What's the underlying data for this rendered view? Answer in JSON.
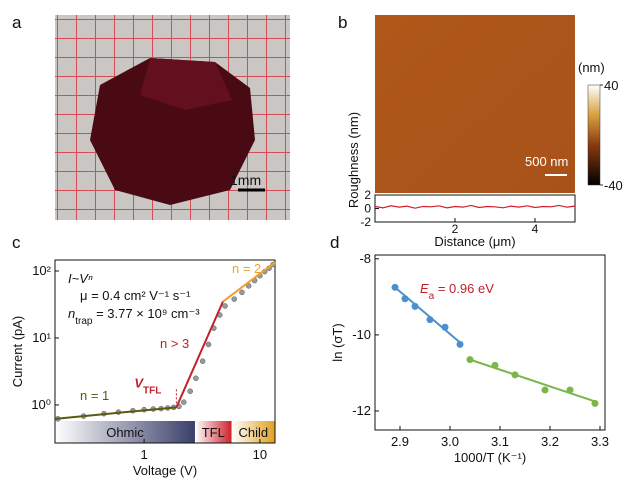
{
  "figure": {
    "panel_labels": [
      "a",
      "b",
      "c",
      "d"
    ],
    "a": {
      "scale_bar": "1mm"
    },
    "b": {
      "scale_bar": "500 nm",
      "colorbar": {
        "unit": "(nm)",
        "ticks": [
          40,
          -40
        ],
        "lim": [
          -40,
          40
        ]
      }
    }
  },
  "chart_data": [
    {
      "type": "line",
      "xlabel": "Distance (μm)",
      "ylabel": "Roughness (nm)",
      "xlim": [
        0,
        5
      ],
      "ylim": [
        -2,
        2
      ],
      "xticks": [
        2,
        4
      ],
      "yticks": [
        2,
        0,
        -2
      ],
      "series": [
        {
          "color": "#d0202a",
          "x": [
            0,
            0.2,
            0.4,
            0.6,
            0.8,
            1.0,
            1.2,
            1.4,
            1.6,
            1.8,
            2.0,
            2.2,
            2.4,
            2.6,
            2.8,
            3.0,
            3.2,
            3.4,
            3.6,
            3.8,
            4.0,
            4.2,
            4.4,
            4.6,
            4.8,
            5.0
          ],
          "values": [
            0.3,
            0.1,
            0.4,
            0.2,
            0.35,
            0.05,
            0.3,
            0.25,
            0.4,
            0.1,
            0.3,
            0.2,
            0.45,
            0.15,
            0.3,
            0.25,
            0.1,
            0.35,
            0.2,
            0.4,
            0.15,
            0.3,
            0.25,
            0.45,
            0.2,
            0.35
          ]
        }
      ]
    },
    {
      "type": "line",
      "log_scale": [
        "x",
        "y"
      ],
      "xlabel": "Voltage (V)",
      "ylabel": "Current (pA)",
      "xlim": [
        0.17,
        13.5
      ],
      "ylim": [
        0.27,
        146
      ],
      "xticks": [
        1,
        10
      ],
      "yticks": [
        {
          "value": 1,
          "label": "10⁰"
        },
        {
          "value": 10,
          "label": "10¹"
        },
        {
          "value": 100,
          "label": "10²"
        }
      ],
      "annotations": {
        "law": "I~Vⁿ",
        "mobility": "μ = 0.4 cm² V⁻¹ s⁻¹",
        "trap": [
          "n",
          "trap",
          " = 3.77 × 10⁹ cm⁻³"
        ],
        "v_tfl": [
          "V",
          "TFL"
        ]
      },
      "points": {
        "color": "#9a9a9a",
        "x": [
          0.18,
          0.3,
          0.45,
          0.6,
          0.8,
          1.0,
          1.2,
          1.4,
          1.6,
          1.8,
          2.0,
          2.2,
          2.5,
          2.8,
          3.2,
          3.6,
          4.0,
          4.5,
          5.0,
          6,
          7,
          8,
          9,
          10,
          11,
          12,
          13
        ],
        "values": [
          0.62,
          0.68,
          0.74,
          0.78,
          0.82,
          0.85,
          0.87,
          0.88,
          0.9,
          0.92,
          0.95,
          1.1,
          1.6,
          2.5,
          4.5,
          8,
          14,
          22,
          30,
          38,
          48,
          60,
          72,
          85,
          98,
          110,
          125
        ]
      },
      "series": [
        {
          "name": "n = 1",
          "color": "#5a5a10",
          "x": [
            0.17,
            1.9
          ],
          "values": [
            0.62,
            0.92
          ]
        },
        {
          "name": "n > 3",
          "color": "#c0202a",
          "x": [
            1.9,
            4.8
          ],
          "values": [
            0.92,
            35
          ]
        },
        {
          "name": "n = 2",
          "color": "#f0a030",
          "x": [
            4.8,
            13.5
          ],
          "values": [
            35,
            135
          ]
        }
      ],
      "regions": [
        {
          "name": "Ohmic",
          "color": "#3a3f6a",
          "x": [
            0.17,
            2.75
          ]
        },
        {
          "name": "TFL",
          "color": "#d0202a",
          "x": [
            2.75,
            5.7
          ]
        },
        {
          "name": "Child",
          "color": "#e0a020",
          "x": [
            5.7,
            13.5
          ]
        }
      ]
    },
    {
      "type": "scatter",
      "xlabel": "1000/T (K⁻¹)",
      "ylabel": "ln (σT)",
      "xlim": [
        2.85,
        3.31
      ],
      "ylim": [
        -12.5,
        -7.9
      ],
      "xticks": [
        2.9,
        {
          "value": 3,
          "label": "3.0"
        },
        3.1,
        3.2,
        3.3
      ],
      "yticks": [
        -12,
        -10,
        -8
      ],
      "annotation": {
        "parts": [
          "E",
          "a",
          " = 0.96 eV"
        ],
        "color": "#c0202a"
      },
      "series": [
        {
          "color": "#4a90d0",
          "x": [
            2.89,
            2.91,
            2.93,
            2.96,
            2.99,
            3.02
          ],
          "values": [
            -8.75,
            -9.05,
            -9.25,
            -9.6,
            -9.8,
            -10.25
          ],
          "fit": {
            "x": [
              2.89,
              3.02
            ],
            "values": [
              -8.75,
              -10.2
            ]
          }
        },
        {
          "color": "#7ab648",
          "x": [
            3.04,
            3.09,
            3.13,
            3.19,
            3.24,
            3.29
          ],
          "values": [
            -10.65,
            -10.8,
            -11.05,
            -11.45,
            -11.45,
            -11.8
          ],
          "fit": {
            "x": [
              3.04,
              3.29
            ],
            "values": [
              -10.65,
              -11.75
            ]
          }
        }
      ]
    }
  ]
}
